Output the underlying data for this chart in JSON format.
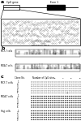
{
  "bg_color": "#ffffff",
  "dot_filled": "#000000",
  "dot_empty": "#ffffff",
  "dot_border": "#444444",
  "n_cpg_sites": 24,
  "n_clones": 6,
  "cell_types_b": [
    "MCF-7 cells",
    "MDA-T cells"
  ],
  "cell_types_c": [
    "MCF-7 cells",
    "MDA-T cells",
    "Hajj cells"
  ],
  "mcf7_pattern": [
    [
      0,
      0,
      0,
      0,
      0,
      0,
      0,
      0,
      0,
      0,
      0,
      0,
      0,
      0,
      0,
      0,
      0,
      0,
      0,
      0,
      0,
      0,
      0,
      0
    ],
    [
      0,
      0,
      0,
      0,
      0,
      0,
      0,
      0,
      0,
      0,
      0,
      0,
      0,
      0,
      0,
      0,
      0,
      0,
      0,
      0,
      0,
      0,
      0,
      0
    ],
    [
      0,
      0,
      0,
      0,
      0,
      0,
      0,
      0,
      0,
      0,
      0,
      0,
      0,
      0,
      0,
      0,
      0,
      0,
      0,
      0,
      0,
      0,
      0,
      0
    ],
    [
      0,
      0,
      0,
      0,
      0,
      0,
      0,
      0,
      0,
      0,
      0,
      0,
      0,
      0,
      0,
      0,
      0,
      0,
      0,
      0,
      0,
      0,
      0,
      0
    ],
    [
      0,
      0,
      0,
      0,
      0,
      0,
      0,
      0,
      0,
      0,
      0,
      0,
      0,
      0,
      0,
      0,
      0,
      0,
      0,
      0,
      0,
      0,
      0,
      0
    ],
    [
      0,
      0,
      0,
      0,
      0,
      0,
      0,
      0,
      0,
      0,
      0,
      0,
      0,
      0,
      0,
      0,
      0,
      1,
      0,
      0,
      0,
      0,
      0,
      0
    ]
  ],
  "mda_pattern": [
    [
      1,
      1,
      1,
      1,
      1,
      1,
      1,
      1,
      1,
      1,
      1,
      1,
      1,
      1,
      1,
      1,
      1,
      1,
      1,
      1,
      1,
      1,
      1,
      1
    ],
    [
      1,
      1,
      1,
      1,
      1,
      1,
      1,
      1,
      1,
      1,
      1,
      1,
      1,
      1,
      1,
      1,
      1,
      1,
      1,
      1,
      1,
      1,
      1,
      1
    ],
    [
      1,
      1,
      1,
      1,
      1,
      1,
      1,
      1,
      1,
      1,
      1,
      1,
      1,
      1,
      1,
      1,
      1,
      1,
      1,
      1,
      1,
      1,
      1,
      1
    ],
    [
      1,
      1,
      1,
      1,
      1,
      1,
      1,
      1,
      1,
      1,
      1,
      1,
      1,
      1,
      1,
      1,
      1,
      1,
      1,
      1,
      1,
      1,
      1,
      1
    ],
    [
      1,
      1,
      1,
      1,
      1,
      1,
      1,
      1,
      1,
      1,
      1,
      1,
      1,
      1,
      1,
      1,
      1,
      1,
      1,
      1,
      1,
      1,
      1,
      1
    ],
    [
      1,
      1,
      1,
      1,
      1,
      1,
      1,
      1,
      1,
      1,
      1,
      1,
      1,
      1,
      1,
      1,
      1,
      1,
      1,
      1,
      1,
      1,
      1,
      1
    ]
  ],
  "hajj_pattern": [
    [
      1,
      1,
      1,
      1,
      1,
      1,
      1,
      1,
      1,
      1,
      1,
      1,
      1,
      1,
      1,
      1,
      1,
      1,
      1,
      1,
      1,
      1,
      1,
      1
    ],
    [
      1,
      1,
      1,
      1,
      1,
      1,
      1,
      1,
      1,
      1,
      1,
      1,
      1,
      1,
      1,
      1,
      1,
      1,
      1,
      1,
      1,
      1,
      1,
      1
    ],
    [
      1,
      1,
      1,
      1,
      1,
      1,
      1,
      1,
      1,
      1,
      1,
      1,
      1,
      1,
      1,
      1,
      1,
      1,
      1,
      1,
      1,
      1,
      1,
      1
    ],
    [
      1,
      1,
      1,
      1,
      1,
      1,
      1,
      1,
      1,
      1,
      1,
      1,
      1,
      1,
      1,
      1,
      1,
      1,
      1,
      1,
      1,
      1,
      1,
      1
    ],
    [
      1,
      1,
      1,
      1,
      1,
      1,
      1,
      1,
      1,
      1,
      1,
      1,
      1,
      1,
      1,
      1,
      1,
      1,
      1,
      1,
      1,
      1,
      1,
      1
    ],
    [
      1,
      1,
      1,
      1,
      1,
      1,
      1,
      1,
      1,
      1,
      1,
      1,
      1,
      1,
      1,
      1,
      1,
      1,
      1,
      1,
      1,
      1,
      1,
      1
    ]
  ]
}
